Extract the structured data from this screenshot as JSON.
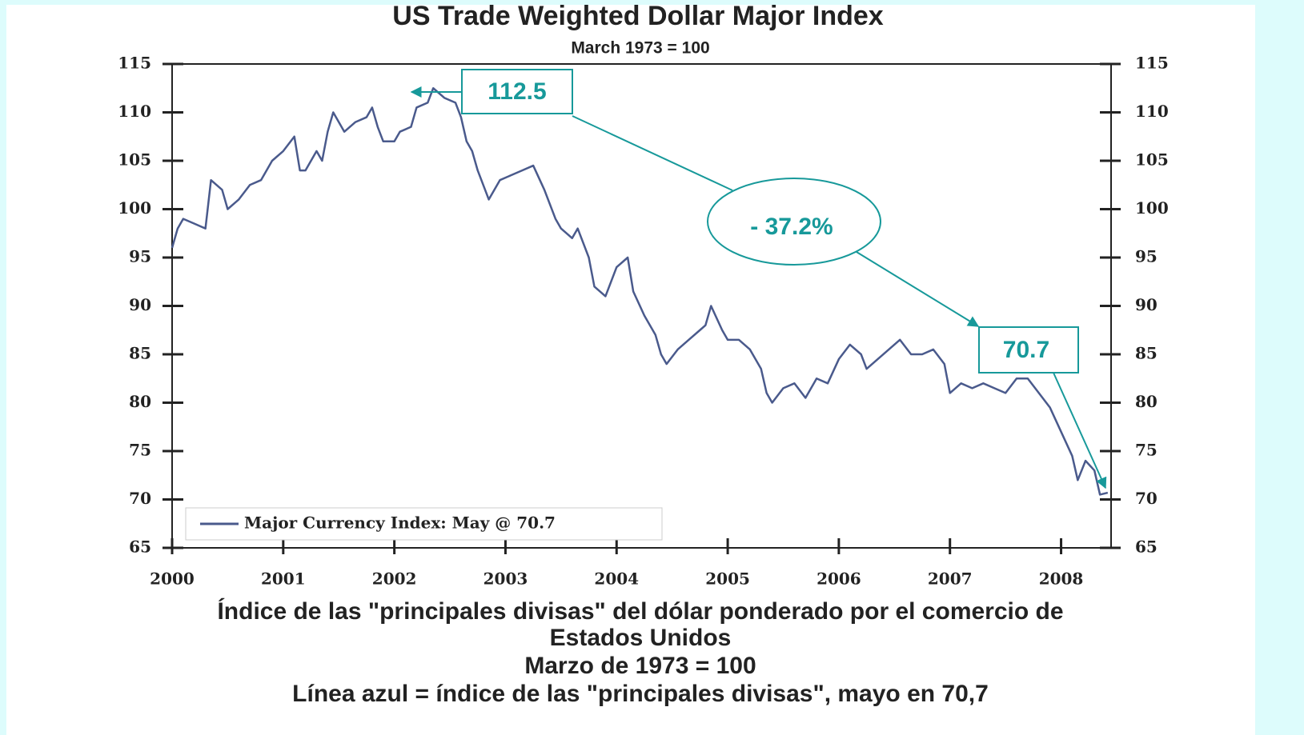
{
  "chart_data": {
    "type": "line",
    "title": "US Trade Weighted Dollar Major Index",
    "subtitle": "March 1973 = 100",
    "x": [
      2000.0,
      2000.05,
      2000.1,
      2000.2,
      2000.3,
      2000.35,
      2000.45,
      2000.5,
      2000.6,
      2000.7,
      2000.8,
      2000.9,
      2001.0,
      2001.1,
      2001.15,
      2001.2,
      2001.3,
      2001.35,
      2001.4,
      2001.45,
      2001.55,
      2001.65,
      2001.75,
      2001.8,
      2001.85,
      2001.9,
      2002.0,
      2002.05,
      2002.15,
      2002.2,
      2002.3,
      2002.35,
      2002.45,
      2002.55,
      2002.6,
      2002.65,
      2002.7,
      2002.75,
      2002.85,
      2002.95,
      2003.05,
      2003.15,
      2003.25,
      2003.35,
      2003.45,
      2003.5,
      2003.6,
      2003.65,
      2003.75,
      2003.8,
      2003.9,
      2004.0,
      2004.1,
      2004.15,
      2004.25,
      2004.35,
      2004.4,
      2004.45,
      2004.55,
      2004.65,
      2004.75,
      2004.8,
      2004.85,
      2004.95,
      2005.0,
      2005.1,
      2005.2,
      2005.3,
      2005.35,
      2005.4,
      2005.5,
      2005.6,
      2005.7,
      2005.8,
      2005.9,
      2006.0,
      2006.1,
      2006.2,
      2006.25,
      2006.35,
      2006.45,
      2006.55,
      2006.65,
      2006.75,
      2006.85,
      2006.95,
      2007.0,
      2007.1,
      2007.2,
      2007.3,
      2007.4,
      2007.5,
      2007.6,
      2007.7,
      2007.8,
      2007.9,
      2008.0,
      2008.1,
      2008.15,
      2008.22,
      2008.3,
      2008.35,
      2008.42
    ],
    "series": [
      {
        "name": "Major Currency Index: May @ 70.7",
        "color": "#4a5a8c",
        "values": [
          96,
          98,
          99,
          98.5,
          98,
          103,
          102,
          100,
          101,
          102.5,
          103,
          105,
          106,
          107.5,
          104,
          104,
          106,
          105,
          108,
          110,
          108,
          109,
          109.5,
          110.5,
          108.5,
          107,
          107,
          108,
          108.5,
          110.5,
          111,
          112.5,
          111.5,
          111,
          109.5,
          107,
          106,
          104,
          101,
          103,
          103.5,
          104,
          104.5,
          102,
          99,
          98,
          97,
          98,
          95,
          92,
          91,
          94,
          95,
          91.5,
          89,
          87,
          85,
          84,
          85.5,
          86.5,
          87.5,
          88,
          90,
          87.5,
          86.5,
          86.5,
          85.5,
          83.5,
          81,
          80,
          81.5,
          82,
          80.5,
          82.5,
          82,
          84.5,
          86,
          85,
          83.5,
          84.5,
          85.5,
          86.5,
          85,
          85,
          85.5,
          84,
          81,
          82,
          81.5,
          82,
          81.5,
          81,
          82.5,
          82.5,
          81,
          79.5,
          77,
          74.5,
          72,
          74,
          73,
          70.5,
          70.7
        ]
      }
    ],
    "xlim": [
      2000,
      2008.45
    ],
    "xticks": [
      2000,
      2001,
      2002,
      2003,
      2004,
      2005,
      2006,
      2007,
      2008
    ],
    "ylim": [
      65,
      115
    ],
    "yticks": [
      65,
      70,
      75,
      80,
      85,
      90,
      95,
      100,
      105,
      110,
      115
    ],
    "y2lim": [
      65,
      115
    ],
    "y2ticks": [
      65,
      70,
      75,
      80,
      85,
      90,
      95,
      100,
      105,
      110,
      115
    ],
    "legend": "lower left",
    "annotations": [
      "112.5",
      "- 37.2%",
      "70.7"
    ],
    "caption": [
      "Índice de las \"principales divisas\" del dólar ponderado por el comercio de",
      "Estados Unidos",
      "Marzo de 1973 = 100",
      "Línea azul = índice de las \"principales divisas\", mayo en 70,7"
    ]
  }
}
